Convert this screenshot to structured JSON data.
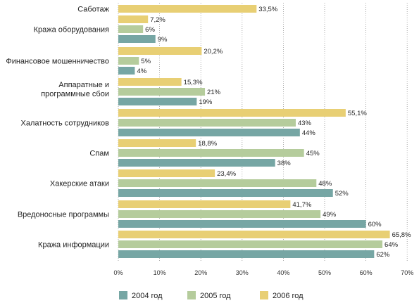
{
  "chart_data": {
    "type": "bar",
    "orientation": "horizontal",
    "categories": [
      {
        "lines": [
          "Саботаж"
        ]
      },
      {
        "lines": [
          "Кража оборудования"
        ]
      },
      {
        "lines": [
          "Финансовое мошенничество"
        ]
      },
      {
        "lines": [
          "Аппаратные и",
          "программные сбои"
        ]
      },
      {
        "lines": [
          "Халатность сотрудников"
        ]
      },
      {
        "lines": [
          "Спам"
        ]
      },
      {
        "lines": [
          "Хакерские атаки"
        ]
      },
      {
        "lines": [
          "Вредоносные программы"
        ]
      },
      {
        "lines": [
          "Кража информации"
        ]
      }
    ],
    "series": [
      {
        "name": "2006 год",
        "color": "#e8cf74",
        "values": [
          33.5,
          7.2,
          20.2,
          15.3,
          55.1,
          18.8,
          23.4,
          41.7,
          65.8
        ],
        "labels": [
          "33,5%",
          "7,2%",
          "20,2%",
          "15,3%",
          "55,1%",
          "18,8%",
          "23,4%",
          "41,7%",
          "65,8%"
        ]
      },
      {
        "name": "2005 год",
        "color": "#b5cc9c",
        "values": [
          null,
          6,
          5,
          21,
          43,
          45,
          48,
          49,
          64
        ],
        "labels": [
          "",
          "6%",
          "5%",
          "21%",
          "43%",
          "45%",
          "48%",
          "49%",
          "64%"
        ]
      },
      {
        "name": "2004 год",
        "color": "#76a6a4",
        "values": [
          null,
          9,
          4,
          19,
          44,
          38,
          52,
          60,
          62
        ],
        "labels": [
          "",
          "9%",
          "4%",
          "19%",
          "44%",
          "38%",
          "52%",
          "60%",
          "62%"
        ]
      }
    ],
    "xlim": [
      0,
      70
    ],
    "xticks": [
      0,
      10,
      20,
      30,
      40,
      50,
      60,
      70
    ],
    "xtick_labels": [
      "0%",
      "10%",
      "20%",
      "30%",
      "40%",
      "50%",
      "60%",
      "70%"
    ],
    "legend": {
      "placement": "bottom",
      "items": [
        {
          "name": "2004 год",
          "color": "#76a6a4"
        },
        {
          "name": "2005 год",
          "color": "#b5cc9c"
        },
        {
          "name": "2006 год",
          "color": "#e8cf74"
        }
      ]
    },
    "grid": "vertical dotted",
    "title": "",
    "xlabel": "",
    "ylabel": ""
  }
}
